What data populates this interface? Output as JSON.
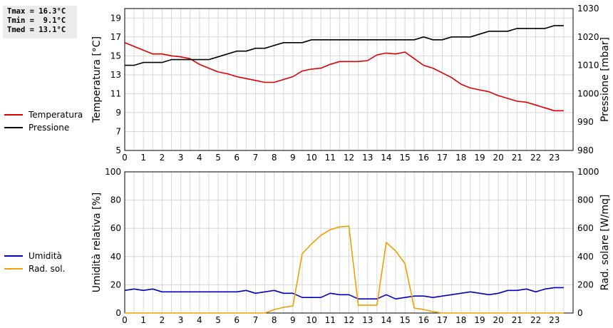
{
  "stats": {
    "tmax": "Tmax = 16.3°C",
    "tmin": "Tmin =  9.1°C",
    "tmed": "Tmed = 13.1°C"
  },
  "chart_data": [
    {
      "type": "line",
      "x": [
        0,
        0.5,
        1,
        1.5,
        2,
        2.5,
        3,
        3.5,
        4,
        4.5,
        5,
        5.5,
        6,
        6.5,
        7,
        7.5,
        8,
        8.5,
        9,
        9.5,
        10,
        10.5,
        11,
        11.5,
        12,
        12.5,
        13,
        13.5,
        14,
        14.5,
        15,
        15.5,
        16,
        16.5,
        17,
        17.5,
        18,
        18.5,
        19,
        19.5,
        20,
        20.5,
        21,
        21.5,
        22,
        22.5,
        23,
        23.5
      ],
      "series": [
        {
          "name": "Temperatura",
          "color": "#e00000",
          "axis": "left",
          "values": [
            16.4,
            16.0,
            15.6,
            15.2,
            15.2,
            15.0,
            14.9,
            14.7,
            14.1,
            13.7,
            13.3,
            13.1,
            12.8,
            12.6,
            12.4,
            12.2,
            12.2,
            12.5,
            12.8,
            13.4,
            13.6,
            13.7,
            14.1,
            14.4,
            14.4,
            14.4,
            14.5,
            15.1,
            15.3,
            15.2,
            15.4,
            14.7,
            14.0,
            13.7,
            13.2,
            12.7,
            12.0,
            11.6,
            11.4,
            11.2,
            10.8,
            10.5,
            10.2,
            10.1,
            9.8,
            9.5,
            9.2,
            9.2
          ]
        },
        {
          "name": "Pressione",
          "color": "#000000",
          "axis": "right",
          "values": [
            1010,
            1010,
            1011,
            1011,
            1011,
            1012,
            1012,
            1012,
            1012,
            1012,
            1013,
            1014,
            1015,
            1015,
            1016,
            1016,
            1017,
            1018,
            1018,
            1018,
            1019,
            1019,
            1019,
            1019,
            1019,
            1019,
            1019,
            1019,
            1019,
            1019,
            1019,
            1019,
            1020,
            1019,
            1019,
            1020,
            1020,
            1020,
            1021,
            1022,
            1022,
            1022,
            1023,
            1023,
            1023,
            1023,
            1024,
            1024
          ]
        }
      ],
      "xlabel": "",
      "ylabel": "Temperatura [°C]",
      "ylabel_right": "Pressione [mbar]",
      "xlim": [
        0,
        24
      ],
      "ylim": [
        5,
        20
      ],
      "ylim_right": [
        980,
        1030
      ],
      "xticks": [
        0,
        1,
        2,
        3,
        4,
        5,
        6,
        7,
        8,
        9,
        10,
        11,
        12,
        13,
        14,
        15,
        16,
        17,
        18,
        19,
        20,
        21,
        22,
        23
      ],
      "yticks": [
        5,
        7,
        9,
        11,
        13,
        15,
        17,
        19
      ],
      "yticks_right": [
        980,
        990,
        1000,
        1010,
        1020,
        1030
      ],
      "grid": true,
      "legend": "left"
    },
    {
      "type": "line",
      "x": [
        0,
        0.5,
        1,
        1.5,
        2,
        2.5,
        3,
        3.5,
        4,
        4.5,
        5,
        5.5,
        6,
        6.5,
        7,
        7.5,
        8,
        8.5,
        9,
        9.5,
        10,
        10.5,
        11,
        11.5,
        12,
        12.5,
        13,
        13.5,
        14,
        14.5,
        15,
        15.5,
        16,
        16.5,
        17,
        17.5,
        18,
        18.5,
        19,
        19.5,
        20,
        20.5,
        21,
        21.5,
        22,
        22.5,
        23,
        23.5
      ],
      "series": [
        {
          "name": "Umidità",
          "color": "#0000c0",
          "axis": "left",
          "values": [
            16,
            17,
            16,
            17,
            15,
            15,
            15,
            15,
            15,
            15,
            15,
            15,
            15,
            16,
            14,
            15,
            16,
            14,
            14,
            11,
            11,
            11,
            14,
            13,
            13,
            10,
            10,
            10,
            13,
            10,
            11,
            12,
            12,
            11,
            12,
            13,
            14,
            15,
            14,
            13,
            14,
            16,
            16,
            17,
            15,
            17,
            18,
            18
          ]
        },
        {
          "name": "Rad. sol.",
          "color": "#f0a000",
          "axis": "right",
          "values": [
            0,
            0,
            0,
            0,
            0,
            0,
            0,
            0,
            0,
            0,
            0,
            0,
            0,
            0,
            0,
            0,
            25,
            40,
            50,
            420,
            490,
            550,
            590,
            610,
            615,
            55,
            55,
            55,
            500,
            440,
            350,
            35,
            25,
            10,
            0,
            0,
            0,
            0,
            0,
            0,
            0,
            0,
            0,
            0,
            0,
            0,
            0,
            0
          ]
        }
      ],
      "xlabel": "",
      "ylabel": "Umidità relativa [%]",
      "ylabel_right": "Rad. solare [W/mq]",
      "xlim": [
        0,
        24
      ],
      "ylim": [
        0,
        100
      ],
      "ylim_right": [
        0,
        1000
      ],
      "xticks": [
        0,
        1,
        2,
        3,
        4,
        5,
        6,
        7,
        8,
        9,
        10,
        11,
        12,
        13,
        14,
        15,
        16,
        17,
        18,
        19,
        20,
        21,
        22,
        23
      ],
      "yticks": [
        0,
        20,
        40,
        60,
        80,
        100
      ],
      "yticks_right": [
        0,
        200,
        400,
        600,
        800,
        1000
      ],
      "grid": true,
      "legend": "left"
    }
  ]
}
